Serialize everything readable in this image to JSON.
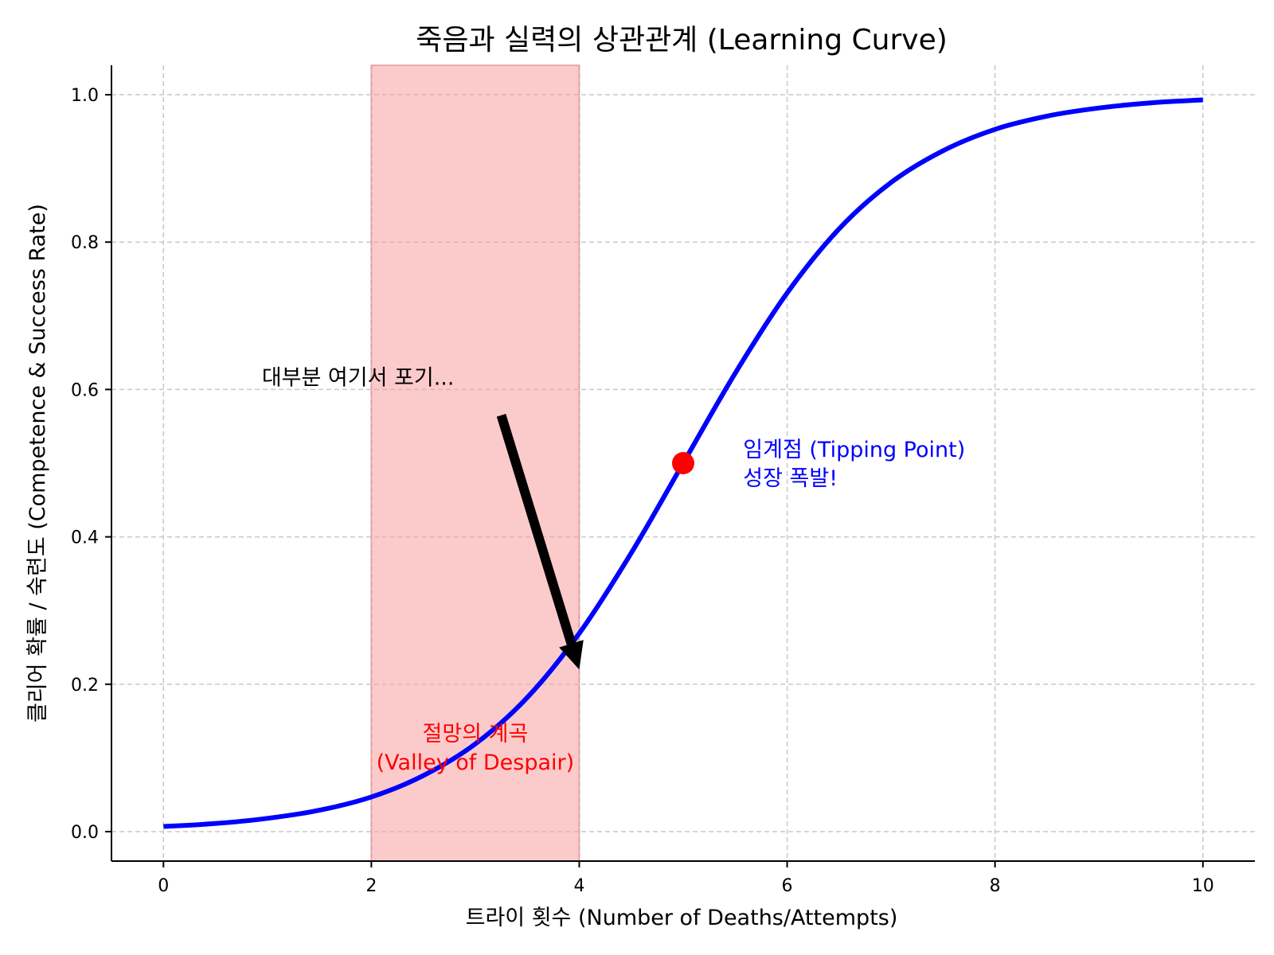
{
  "chart_data": {
    "type": "line",
    "title": "죽음과 실력의 상관관계 (Learning Curve)",
    "xlabel": "트라이 횟수 (Number of Deaths/Attempts)",
    "ylabel": "클리어 확률 / 숙련도 (Competence & Success Rate)",
    "xlim": [
      -0.5,
      10.5
    ],
    "ylim": [
      -0.04,
      1.04
    ],
    "grid": true,
    "x_ticks": [
      0,
      2,
      4,
      6,
      8,
      10
    ],
    "x_tick_labels": [
      "0",
      "2",
      "4",
      "6",
      "8",
      "10"
    ],
    "y_ticks": [
      0.0,
      0.2,
      0.4,
      0.6,
      0.8,
      1.0
    ],
    "y_tick_labels": [
      "0.0",
      "0.2",
      "0.4",
      "0.6",
      "0.8",
      "1.0"
    ],
    "series": [
      {
        "color": "#0000ff",
        "x": [
          0,
          0.5,
          1,
          1.5,
          2,
          2.5,
          3,
          3.5,
          4,
          4.5,
          5,
          5.5,
          6,
          6.5,
          7,
          7.5,
          8,
          8.5,
          9,
          9.5,
          10
        ],
        "y": [
          0.007,
          0.011,
          0.018,
          0.029,
          0.047,
          0.076,
          0.119,
          0.182,
          0.269,
          0.378,
          0.5,
          0.622,
          0.731,
          0.818,
          0.881,
          0.924,
          0.953,
          0.971,
          0.982,
          0.989,
          0.993
        ]
      }
    ],
    "shaded_region": {
      "x": [
        2,
        4
      ],
      "color": "#f8a0a0"
    },
    "highlight_point": {
      "x": 5,
      "y": 0.5,
      "color": "#ff0000"
    },
    "annotations": [
      {
        "text_lines": [
          "절망의 계곡",
          "(Valley of Despair)"
        ],
        "x": 3,
        "y": 0.11,
        "color": "#ff0000"
      },
      {
        "text_lines": [
          "임계점 (Tipping Point)",
          "성장 폭발!"
        ],
        "x": 5.5,
        "y": 0.5,
        "color": "#0000ff"
      },
      {
        "text_lines": [
          "대부분 여기서 포기..."
        ],
        "x": 1,
        "y": 0.6,
        "color": "#000000",
        "arrow_to": [
          4,
          0.22
        ]
      }
    ]
  }
}
